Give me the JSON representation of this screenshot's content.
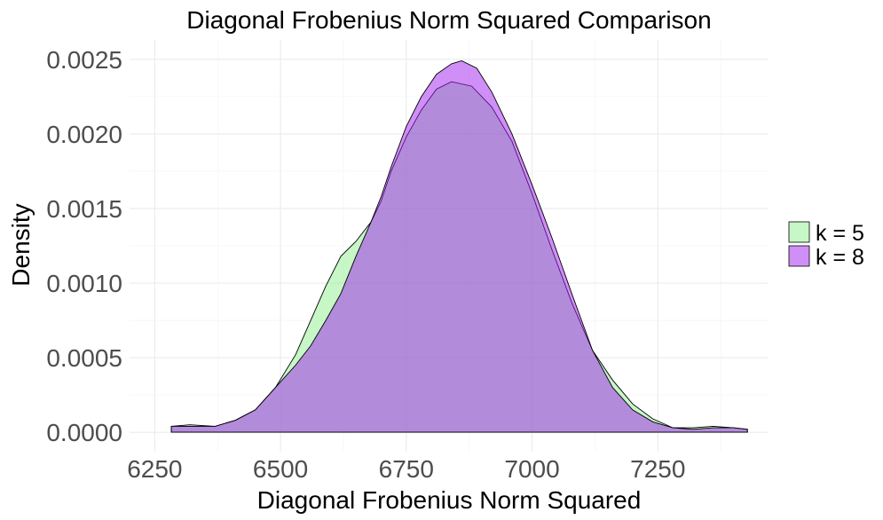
{
  "chart_data": {
    "type": "area",
    "title": "Diagonal Frobenius Norm Squared Comparison",
    "xlabel": "Diagonal Frobenius Norm Squared",
    "ylabel": "Density",
    "xlim": [
      6200,
      7470
    ],
    "ylim": [
      -0.00013,
      0.00263
    ],
    "x_ticks": [
      6250,
      6500,
      6750,
      7000,
      7250
    ],
    "x_tick_labels": [
      "6250",
      "6500",
      "6750",
      "7000",
      "7250"
    ],
    "y_ticks": [
      0.0,
      0.0005,
      0.001,
      0.0015,
      0.002,
      0.0025
    ],
    "y_tick_labels": [
      "0.0000",
      "0.0005",
      "0.0010",
      "0.0015",
      "0.0020",
      "0.0025"
    ],
    "grid": true,
    "legend": {
      "position": "right"
    },
    "series": [
      {
        "name": "k = 5",
        "color": "#90ee90",
        "opacity": 0.5,
        "points": [
          [
            6283,
            4e-05
          ],
          [
            6320,
            5e-05
          ],
          [
            6370,
            4e-05
          ],
          [
            6410,
            8e-05
          ],
          [
            6450,
            0.00015
          ],
          [
            6490,
            0.0003
          ],
          [
            6530,
            0.00052
          ],
          [
            6560,
            0.00075
          ],
          [
            6590,
            0.00098
          ],
          [
            6620,
            0.00118
          ],
          [
            6650,
            0.00128
          ],
          [
            6680,
            0.00141
          ],
          [
            6700,
            0.00155
          ],
          [
            6720,
            0.00175
          ],
          [
            6750,
            0.00198
          ],
          [
            6780,
            0.00216
          ],
          [
            6810,
            0.0023
          ],
          [
            6840,
            0.00235
          ],
          [
            6880,
            0.00232
          ],
          [
            6920,
            0.00218
          ],
          [
            6960,
            0.00195
          ],
          [
            7000,
            0.0016
          ],
          [
            7040,
            0.00122
          ],
          [
            7080,
            0.00086
          ],
          [
            7120,
            0.00055
          ],
          [
            7160,
            0.00035
          ],
          [
            7200,
            0.00019
          ],
          [
            7240,
            9e-05
          ],
          [
            7280,
            3e-05
          ],
          [
            7320,
            3e-05
          ],
          [
            7360,
            4e-05
          ],
          [
            7400,
            3e-05
          ],
          [
            7428,
            2e-05
          ]
        ]
      },
      {
        "name": "k = 8",
        "color": "#a020f0",
        "opacity": 0.5,
        "points": [
          [
            6283,
            4e-05
          ],
          [
            6320,
            4e-05
          ],
          [
            6370,
            4e-05
          ],
          [
            6410,
            8e-05
          ],
          [
            6450,
            0.00015
          ],
          [
            6490,
            0.0003
          ],
          [
            6530,
            0.00045
          ],
          [
            6560,
            0.00058
          ],
          [
            6590,
            0.00075
          ],
          [
            6620,
            0.00093
          ],
          [
            6650,
            0.00118
          ],
          [
            6680,
            0.00141
          ],
          [
            6700,
            0.00158
          ],
          [
            6720,
            0.00178
          ],
          [
            6750,
            0.00205
          ],
          [
            6780,
            0.00225
          ],
          [
            6810,
            0.0024
          ],
          [
            6840,
            0.00247
          ],
          [
            6860,
            0.00249
          ],
          [
            6890,
            0.00244
          ],
          [
            6920,
            0.00228
          ],
          [
            6960,
            0.002
          ],
          [
            7000,
            0.00166
          ],
          [
            7040,
            0.0013
          ],
          [
            7080,
            0.00092
          ],
          [
            7120,
            0.00055
          ],
          [
            7160,
            0.0003
          ],
          [
            7200,
            0.00015
          ],
          [
            7240,
            7e-05
          ],
          [
            7280,
            3e-05
          ],
          [
            7320,
            2e-05
          ],
          [
            7360,
            3e-05
          ],
          [
            7400,
            3e-05
          ],
          [
            7428,
            2e-05
          ]
        ]
      }
    ]
  }
}
